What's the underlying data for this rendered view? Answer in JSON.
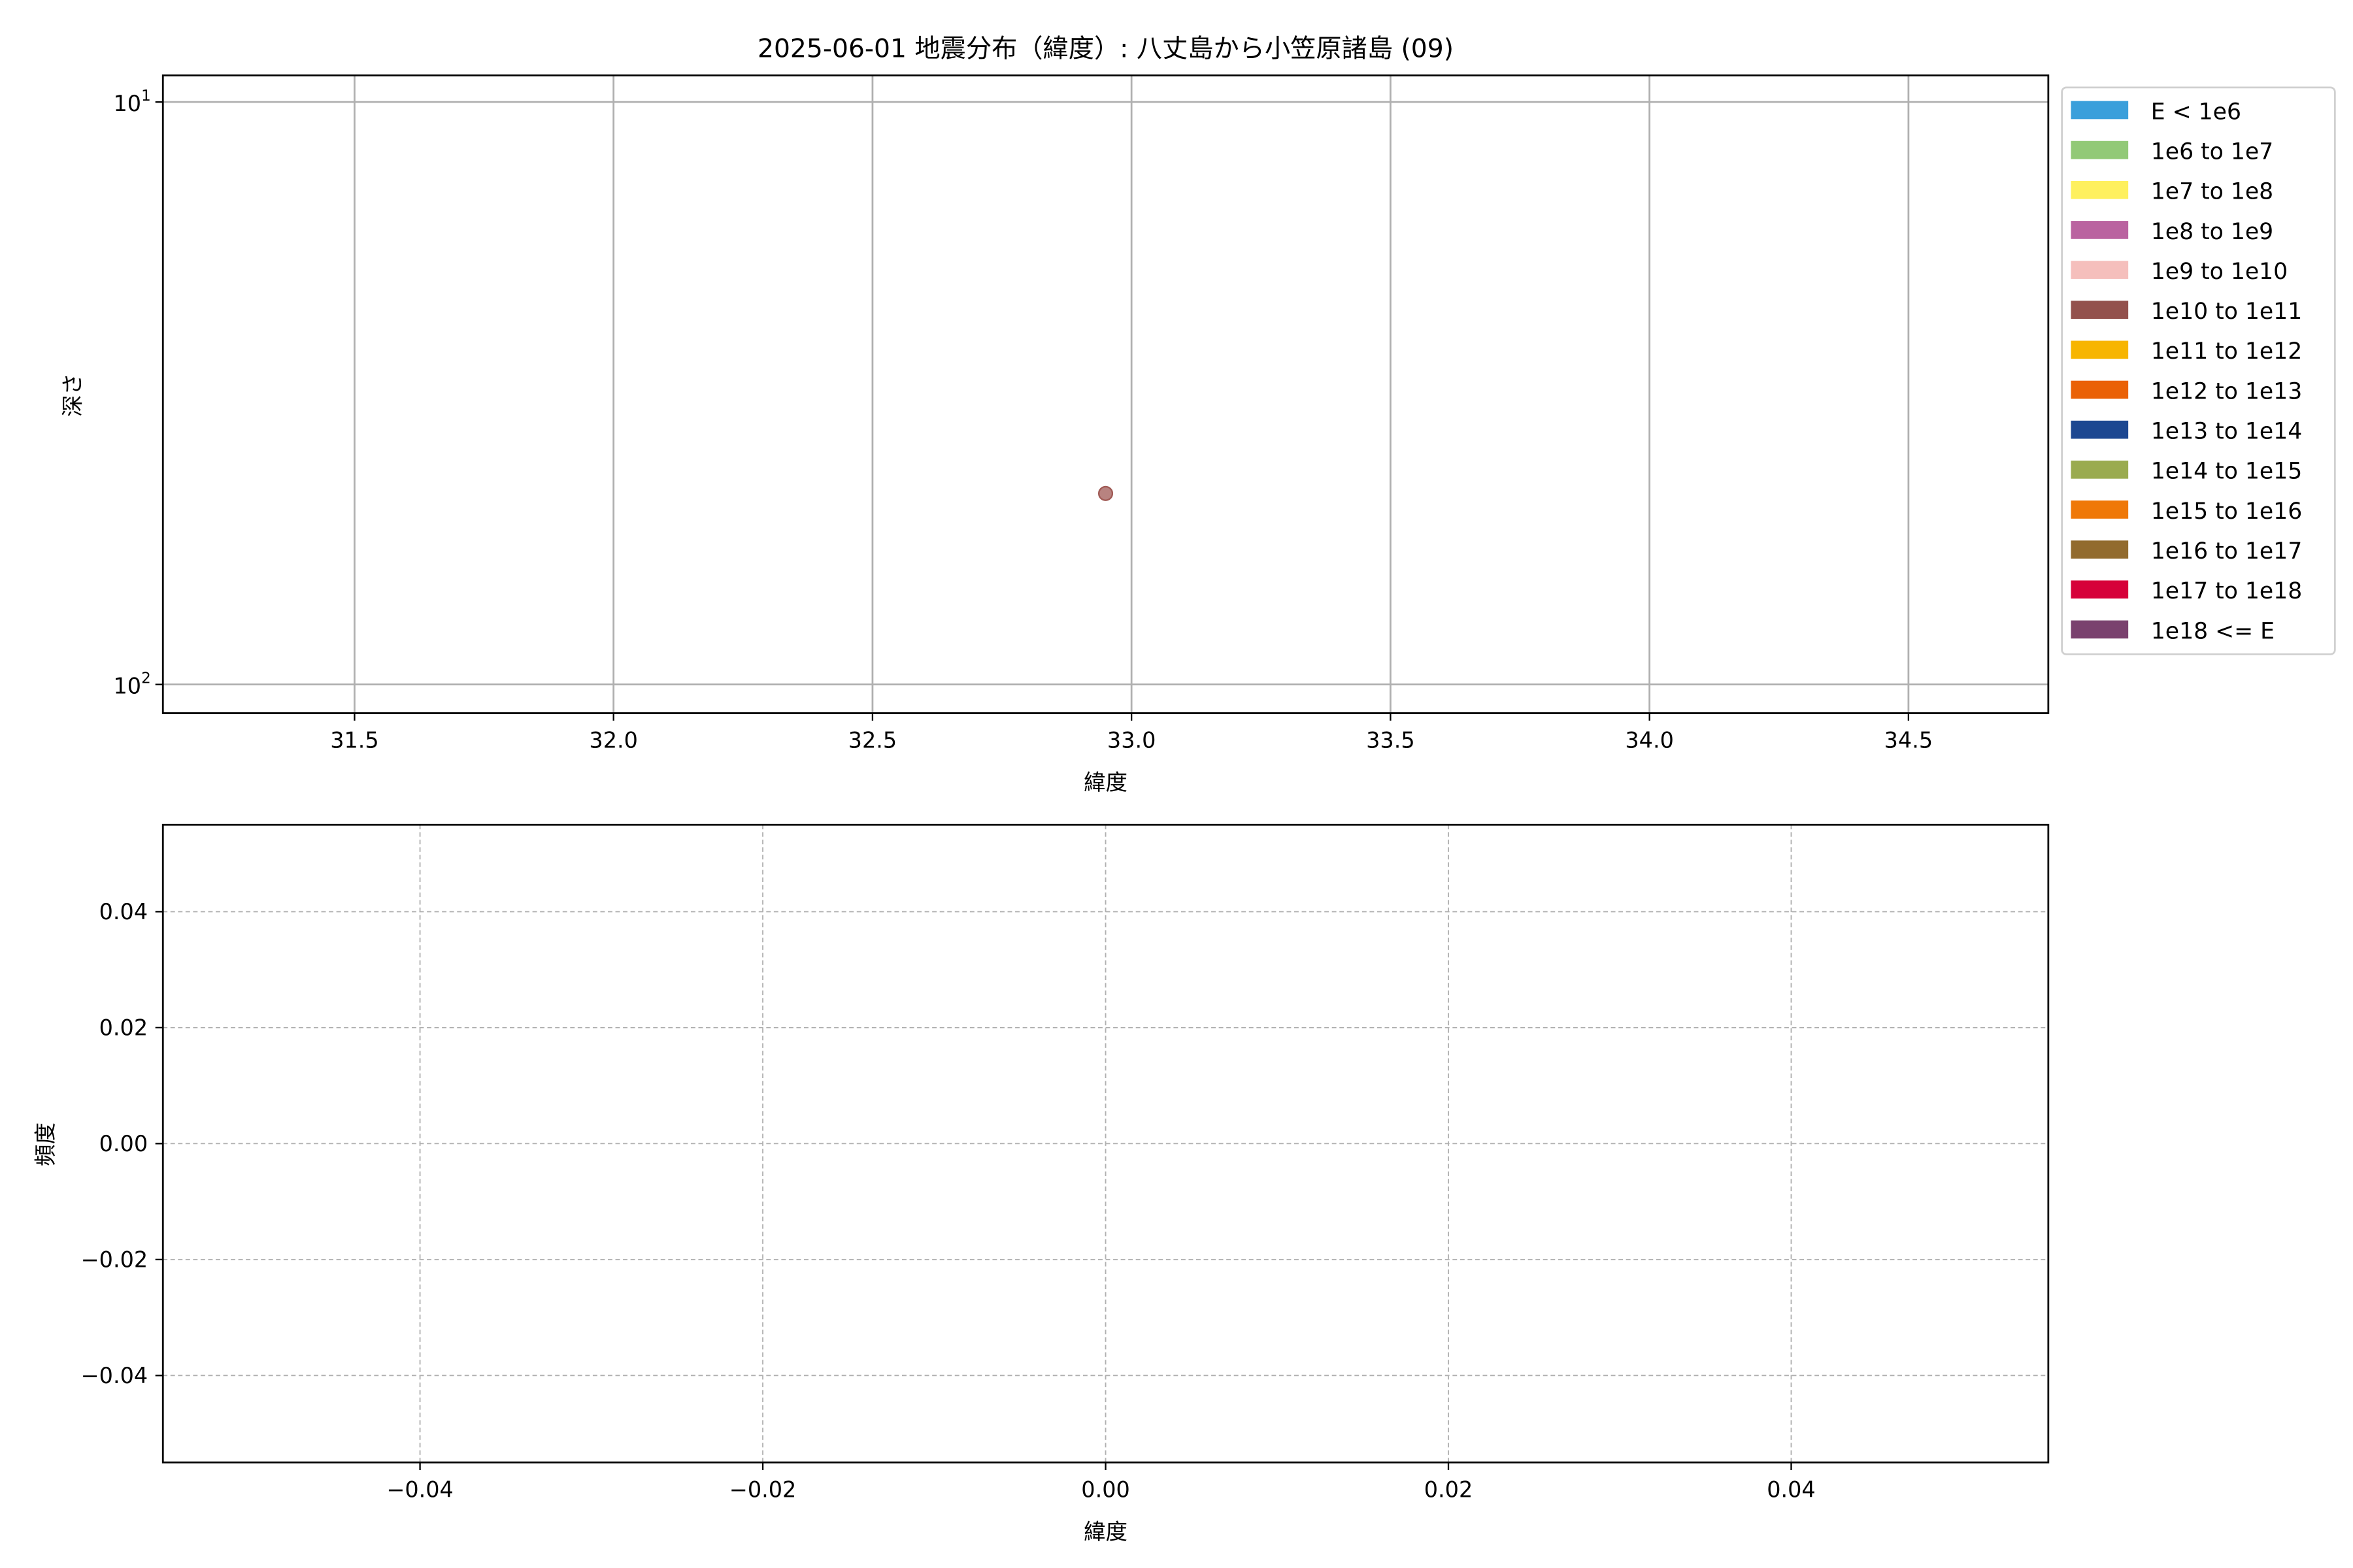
{
  "chart_data": [
    {
      "type": "scatter",
      "title": "2025-06-01 地震分布（緯度）: 八丈島から小笠原諸島 (09)",
      "xlabel": "緯度",
      "ylabel": "深さ",
      "xlim": [
        31.13,
        34.77
      ],
      "ylim": [
        112,
        9
      ],
      "yscale": "log",
      "yinverted": true,
      "grid": true,
      "xticks": [
        "31.5",
        "32.0",
        "32.5",
        "33.0",
        "33.5",
        "34.0",
        "34.5"
      ],
      "yticks": [
        {
          "value": 10,
          "base": "10",
          "exp": "1"
        },
        {
          "value": 100,
          "base": "10",
          "exp": "2"
        }
      ],
      "points": [
        {
          "x": 32.95,
          "y": 47,
          "color": "#a05a55"
        }
      ],
      "legend": {
        "placement": "outside-right",
        "entries": [
          {
            "label": "E < 1e6",
            "color": "#3a9fdb"
          },
          {
            "label": "1e6 to 1e7",
            "color": "#92c977"
          },
          {
            "label": "1e7 to 1e8",
            "color": "#fef05e"
          },
          {
            "label": "1e8 to 1e9",
            "color": "#ba63a0"
          },
          {
            "label": "1e9 to 1e10",
            "color": "#f5bfbc"
          },
          {
            "label": "1e10 to 1e11",
            "color": "#93514d"
          },
          {
            "label": "1e11 to 1e12",
            "color": "#f7b500"
          },
          {
            "label": "1e12 to 1e13",
            "color": "#ea6106"
          },
          {
            "label": "1e13 to 1e14",
            "color": "#1c4791"
          },
          {
            "label": "1e14 to 1e15",
            "color": "#9aab4f"
          },
          {
            "label": "1e15 to 1e16",
            "color": "#ef7808"
          },
          {
            "label": "1e16 to 1e17",
            "color": "#926b2e"
          },
          {
            "label": "1e17 to 1e18",
            "color": "#d6013a"
          },
          {
            "label": "1e18 <= E",
            "color": "#7a416e"
          }
        ]
      }
    },
    {
      "type": "bar",
      "xlabel": "緯度",
      "ylabel": "頻度",
      "xlim": [
        -0.055,
        0.055
      ],
      "ylim": [
        -0.055,
        0.055
      ],
      "grid": true,
      "grid_style": "dashed",
      "xticks": [
        "−0.04",
        "−0.02",
        "0.00",
        "0.02",
        "0.04"
      ],
      "xtick_values": [
        -0.04,
        -0.02,
        0,
        0.02,
        0.04
      ],
      "yticks": [
        "−0.04",
        "−0.02",
        "0.00",
        "0.02",
        "0.04"
      ],
      "ytick_values": [
        -0.04,
        -0.02,
        0,
        0.02,
        0.04
      ],
      "values": []
    }
  ]
}
